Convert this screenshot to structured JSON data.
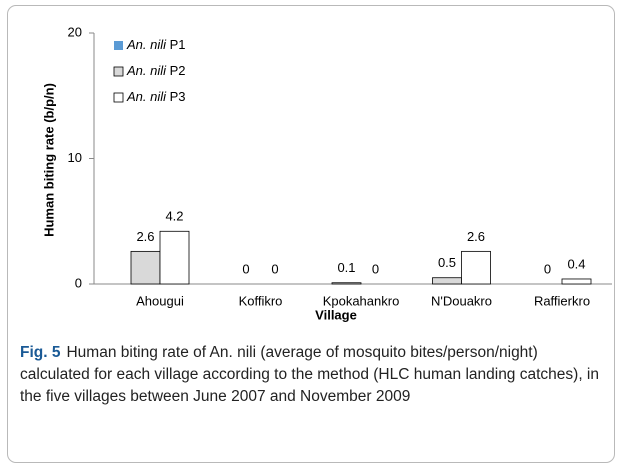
{
  "chart_data": {
    "type": "bar",
    "y_label": "Human biting rate (b/p/n)",
    "x_label": "Village",
    "categories": [
      "Ahougui",
      "Koffikro",
      "Kpokahankro",
      "N'Douakro",
      "Raffierkro"
    ],
    "series": [
      {
        "name": "An. nili P1",
        "color": "#5b9bd5",
        "values": [
          null,
          null,
          null,
          null,
          null
        ]
      },
      {
        "name": "An. nili P2",
        "color": "#d9d9d9",
        "values": [
          2.6,
          0,
          0.1,
          0.5,
          0
        ]
      },
      {
        "name": "An. nili P3",
        "color": "#ffffff",
        "values": [
          4.2,
          0,
          0,
          2.6,
          0.4
        ]
      }
    ],
    "ylim": [
      0,
      20
    ],
    "yticks": [
      0,
      10,
      20
    ],
    "legend": "upper left"
  },
  "caption": {
    "label": "Fig. 5",
    "text": "Human biting rate of An. nili (average of mosquito bites/person/night) calculated for each village according to the method (HLC human landing catches), in the five villages between June 2007 and November 2009"
  }
}
